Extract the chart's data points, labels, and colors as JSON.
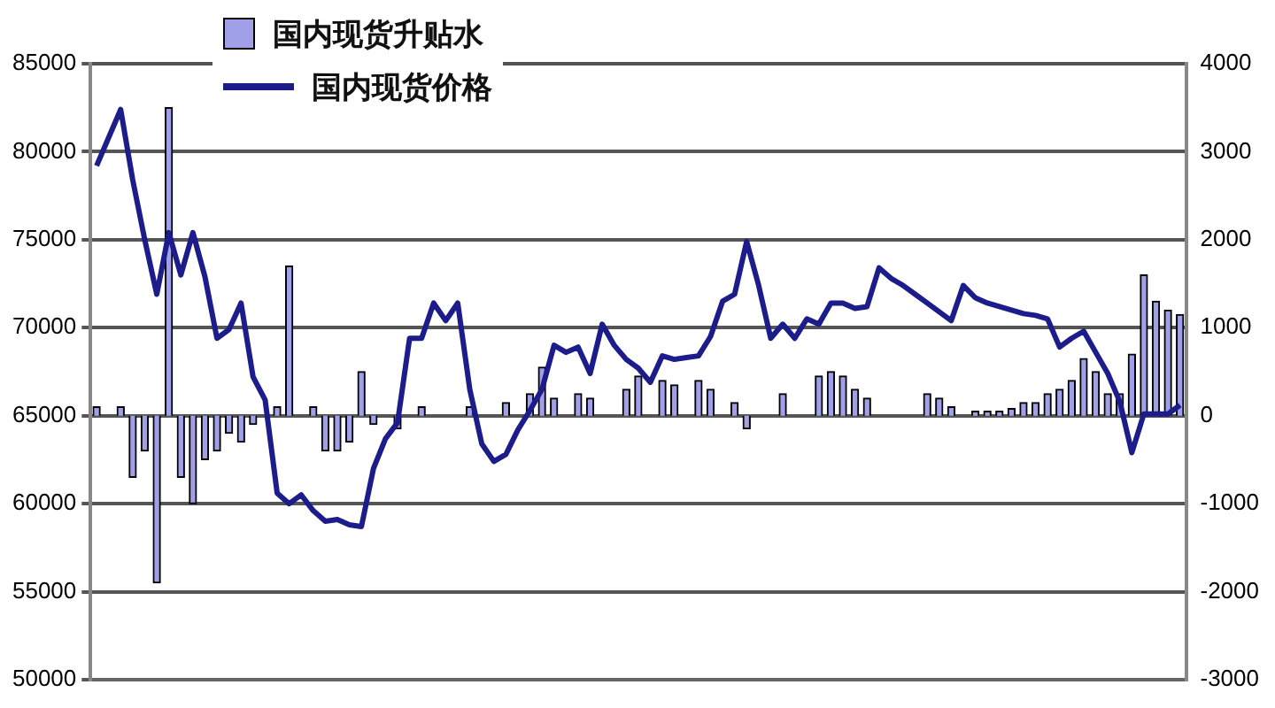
{
  "chart_data": {
    "type": "bar",
    "categories": [
      null,
      null,
      null,
      null,
      null,
      null,
      null,
      null,
      null,
      null,
      null,
      null,
      null,
      null,
      null,
      null,
      null,
      null,
      null,
      null,
      null,
      null,
      null,
      null,
      null,
      null,
      null,
      null,
      null,
      null,
      null,
      null,
      null,
      null,
      null,
      null,
      null,
      null,
      null,
      null,
      null,
      null,
      null,
      null,
      null,
      null,
      null,
      null,
      null,
      null,
      null,
      null,
      null,
      null,
      null,
      null,
      null,
      null,
      null,
      null,
      null,
      null,
      null,
      null,
      null,
      null,
      null,
      null,
      null,
      null,
      null,
      null,
      null,
      null,
      null,
      null,
      null,
      null,
      null,
      null,
      null,
      null,
      null,
      null,
      null,
      null,
      null,
      null,
      null,
      null,
      null
    ],
    "series": [
      {
        "name": "国内现货升贴水",
        "axis": "y2",
        "color": "#a0a0e8",
        "values": [
          100,
          0,
          100,
          -700,
          -400,
          -1900,
          3500,
          -700,
          -1000,
          -500,
          -400,
          -200,
          -300,
          -100,
          0,
          100,
          1700,
          0,
          100,
          -400,
          -400,
          -300,
          500,
          -100,
          0,
          -150,
          0,
          100,
          0,
          0,
          0,
          100,
          0,
          0,
          150,
          0,
          250,
          550,
          200,
          0,
          250,
          200,
          0,
          0,
          300,
          450,
          0,
          400,
          350,
          0,
          400,
          300,
          0,
          150,
          -150,
          0,
          0,
          250,
          0,
          0,
          450,
          500,
          450,
          300,
          200,
          0,
          0,
          0,
          0,
          250,
          200,
          100,
          0,
          50,
          50,
          50,
          80,
          150,
          150,
          250,
          300,
          400,
          650,
          500,
          250,
          250,
          700,
          1600,
          1300,
          1200,
          1150
        ]
      },
      {
        "name": "国内现货价格",
        "type": "line",
        "color": "#1c1c8a",
        "values": [
          79200,
          80800,
          82400,
          78400,
          75000,
          71900,
          75400,
          73000,
          75400,
          72900,
          69400,
          69900,
          71400,
          67200,
          65900,
          60600,
          60000,
          60500,
          59600,
          59000,
          59100,
          58800,
          58700,
          62000,
          63700,
          64600,
          69400,
          69400,
          71400,
          70400,
          71400,
          66500,
          63400,
          62400,
          62800,
          64200,
          65300,
          66500,
          69000,
          68600,
          68900,
          67400,
          70200,
          69000,
          68200,
          67700,
          66900,
          68400,
          68200,
          68300,
          68400,
          69500,
          71500,
          71900,
          74900,
          72400,
          69400,
          70200,
          69400,
          70500,
          70200,
          71400,
          71400,
          71100,
          71200,
          73400,
          72800,
          72400,
          71900,
          71400,
          70900,
          70400,
          72400,
          71700,
          71400,
          71200,
          71000,
          70800,
          70700,
          70500,
          68900,
          69400,
          69800,
          68600,
          67400,
          65800,
          62900,
          65100,
          65100,
          65100,
          65600
        ]
      }
    ],
    "ylim": [
      50000,
      85000
    ],
    "yticks": [
      50000,
      55000,
      60000,
      65000,
      70000,
      75000,
      80000,
      85000
    ],
    "y2lim": [
      -3000,
      4000
    ],
    "y2ticks": [
      -3000,
      -2000,
      -1000,
      0,
      1000,
      2000,
      3000,
      4000
    ],
    "grid": "y",
    "legend": "top left",
    "tick_labels": "y"
  }
}
